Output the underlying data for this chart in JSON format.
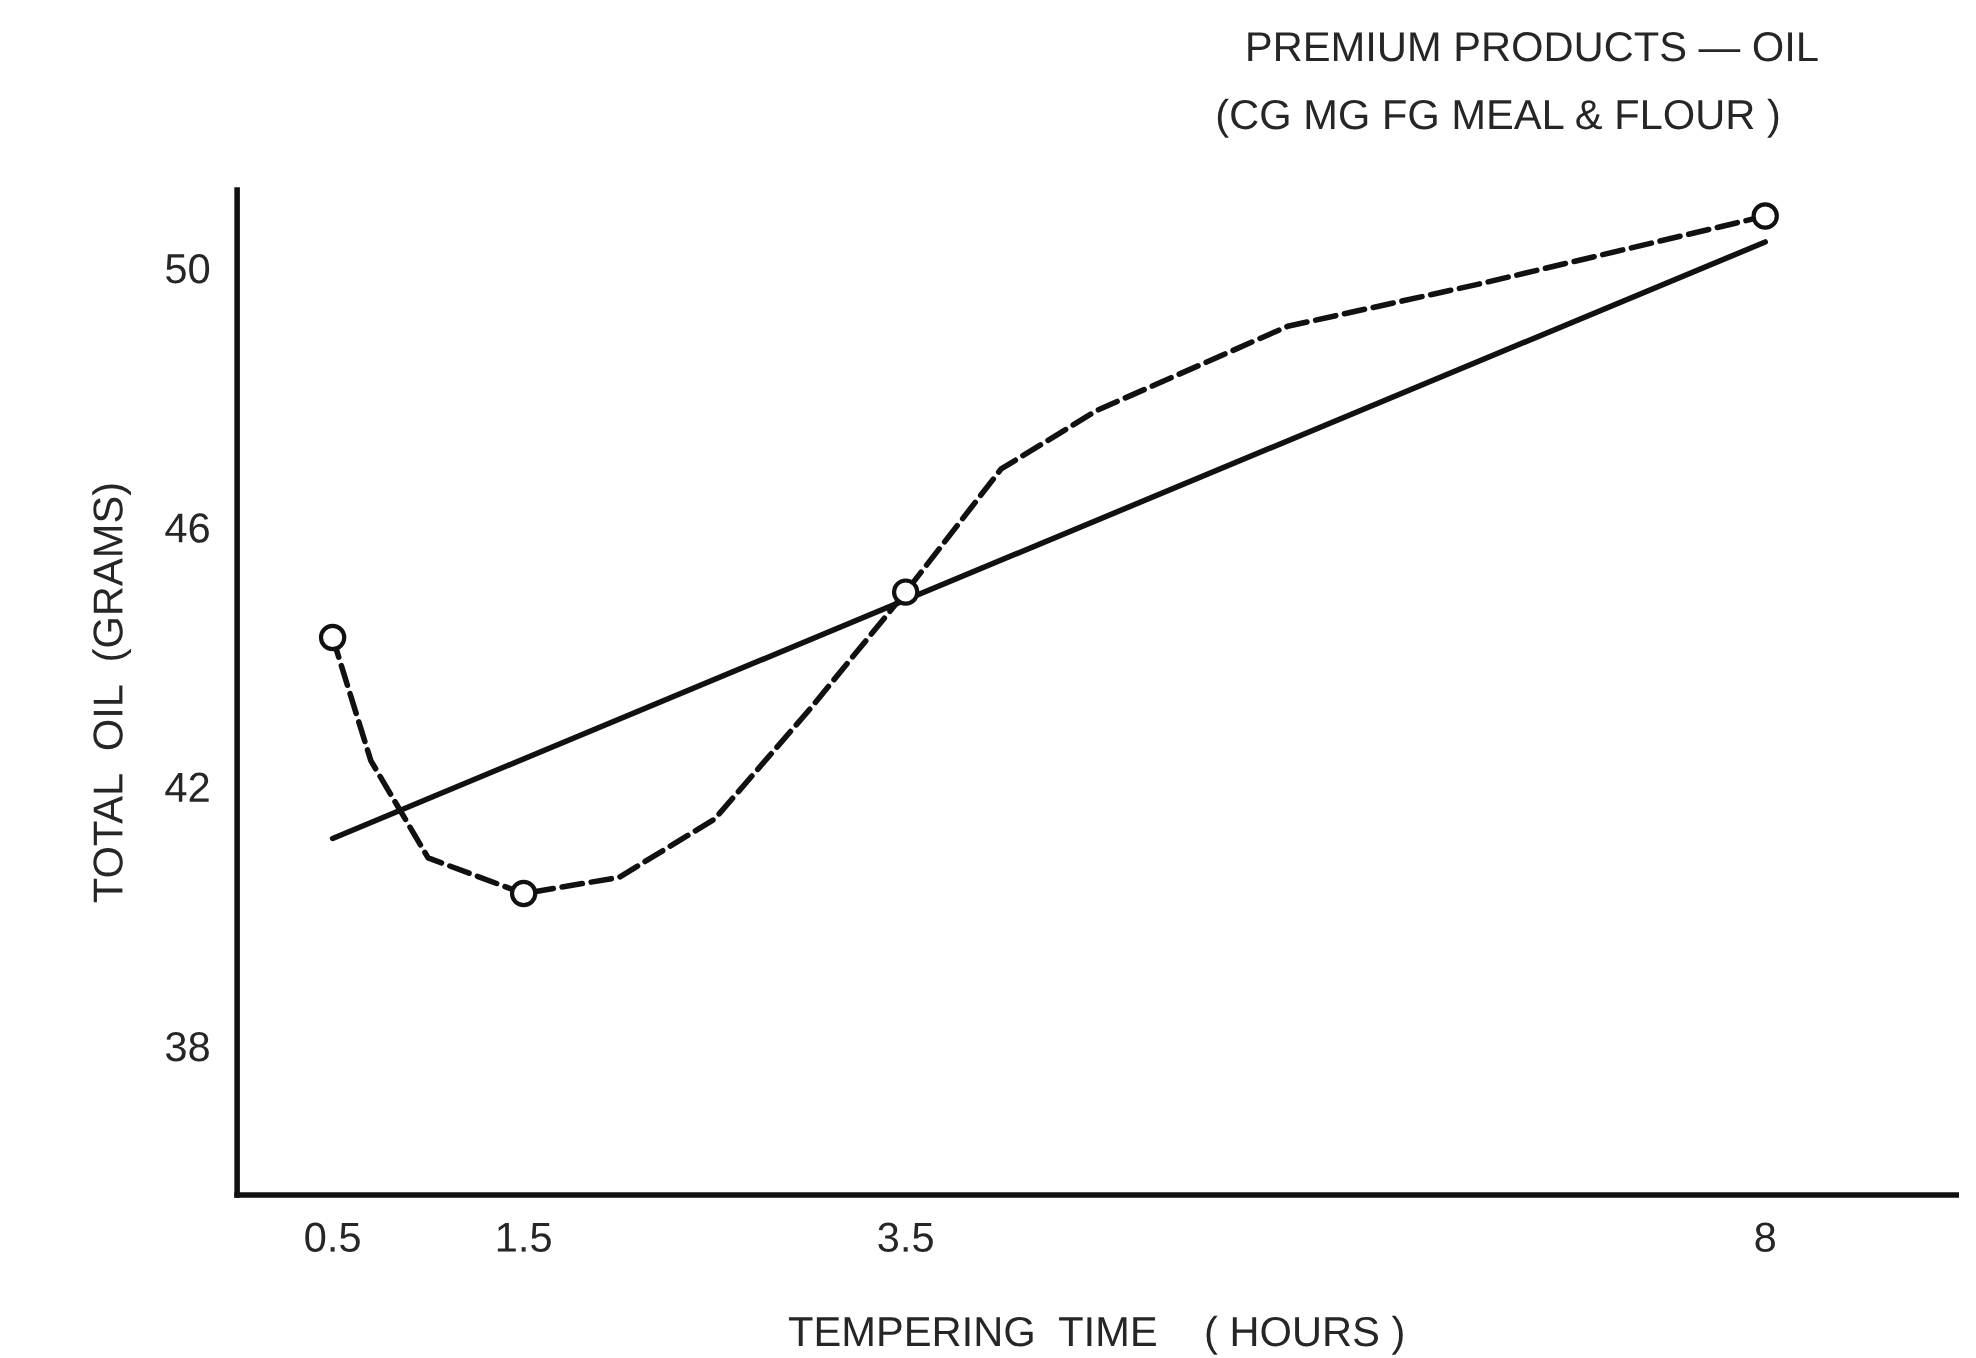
{
  "chart_data": {
    "type": "line",
    "title": "PREMIUM PRODUCTS — OIL",
    "subtitle": "(CG MG FG MEAL & FLOUR )",
    "xlabel": "TEMPERING  TIME    ( HOURS )",
    "ylabel": "TOTAL  OIL  (GRAMS)",
    "xlim": [
      0,
      9
    ],
    "xticks": [
      0.5,
      1.5,
      3.5,
      8
    ],
    "ylim": [
      35.7,
      51.2
    ],
    "yticks": [
      38,
      42,
      46,
      50
    ],
    "grid": false,
    "series": [
      {
        "color": "#111111",
        "line_style": "dashed",
        "marker": "none",
        "x": [
          0.5,
          0.7,
          1.0,
          1.5,
          2.0,
          2.5,
          3.0,
          3.5,
          4.0,
          4.5,
          5.5,
          6.5,
          8
        ],
        "values": [
          44.3,
          42.4,
          40.9,
          40.35,
          40.6,
          41.5,
          43.2,
          45.0,
          46.9,
          47.8,
          49.1,
          49.75,
          50.8
        ]
      },
      {
        "color": "#111111",
        "line_style": "solid",
        "marker": "none",
        "x": [
          0.5,
          8
        ],
        "values": [
          41.2,
          50.4
        ]
      },
      {
        "type": "scatter",
        "color": "#111111",
        "marker": "circle",
        "x": [
          0.5,
          1.5,
          3.5,
          8
        ],
        "values": [
          44.3,
          40.35,
          45.0,
          50.8
        ]
      }
    ]
  }
}
